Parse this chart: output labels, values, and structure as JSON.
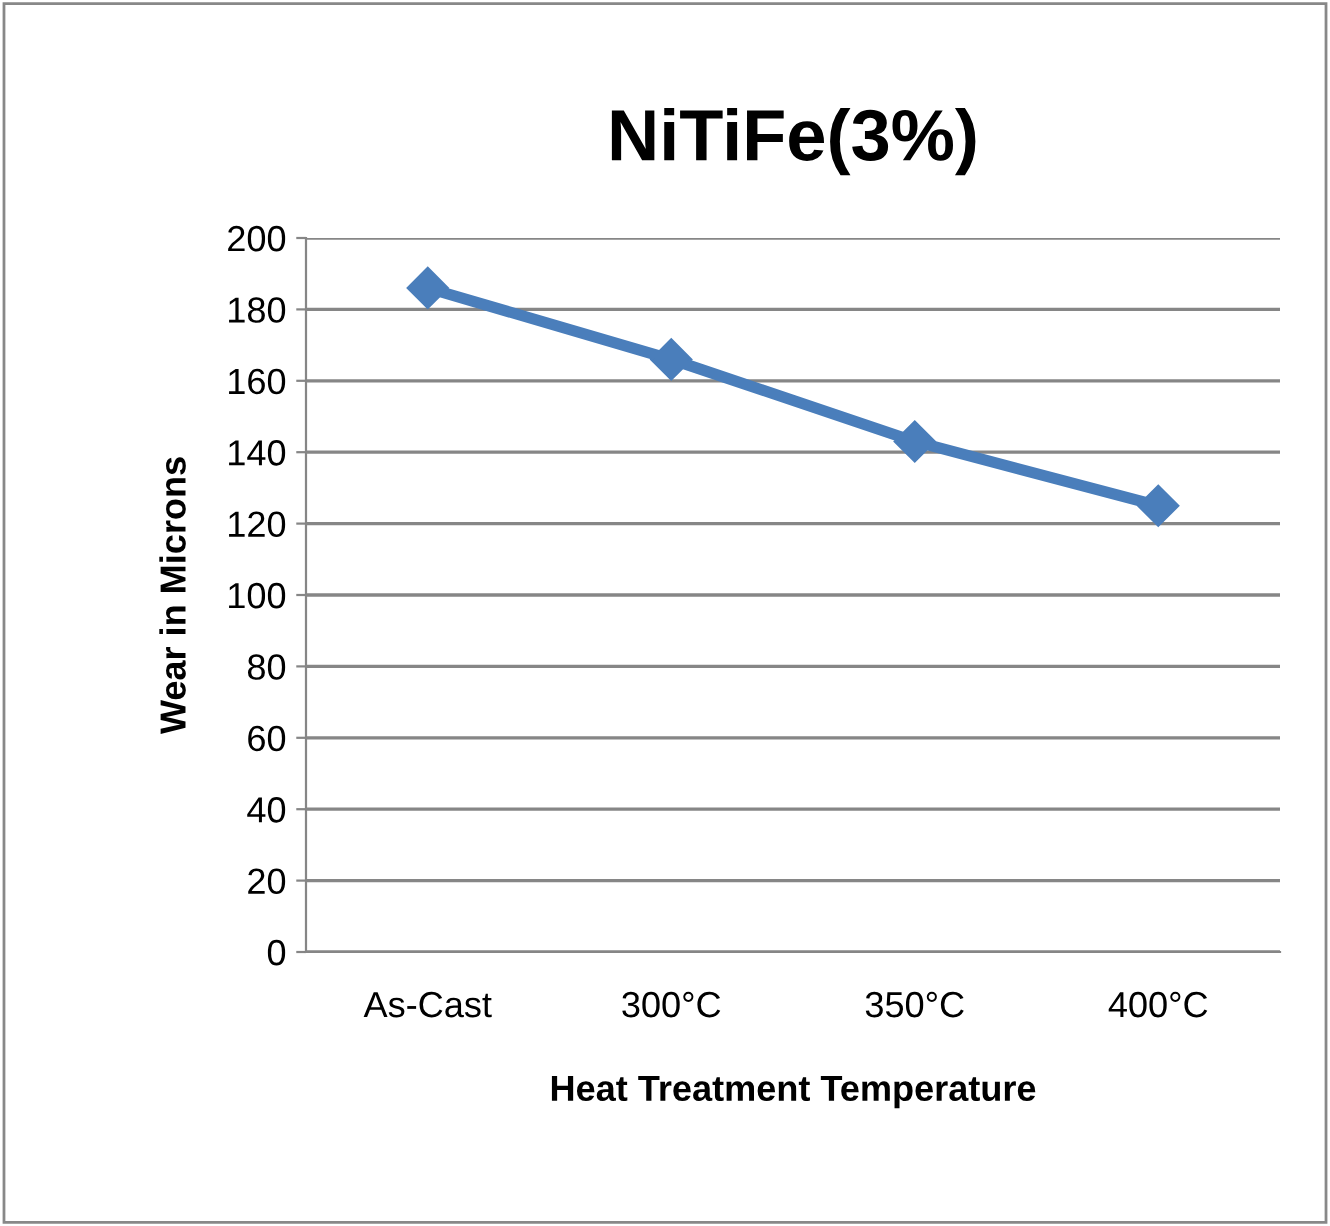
{
  "chart_data": {
    "type": "line",
    "title": "NiTiFe(3%)",
    "xlabel": "Heat Treatment Temperature",
    "ylabel": "Wear in Microns",
    "categories": [
      "As-Cast",
      "300°C",
      "350°C",
      "400°C"
    ],
    "series": [
      {
        "color": "#4a7ebb",
        "values": [
          186,
          166,
          143,
          125
        ]
      }
    ],
    "ylim": [
      0,
      200
    ],
    "yticks": [
      0,
      20,
      40,
      60,
      80,
      100,
      120,
      140,
      160,
      180,
      200
    ],
    "grid": "y",
    "marker": "diamond",
    "line_style": "solid"
  }
}
